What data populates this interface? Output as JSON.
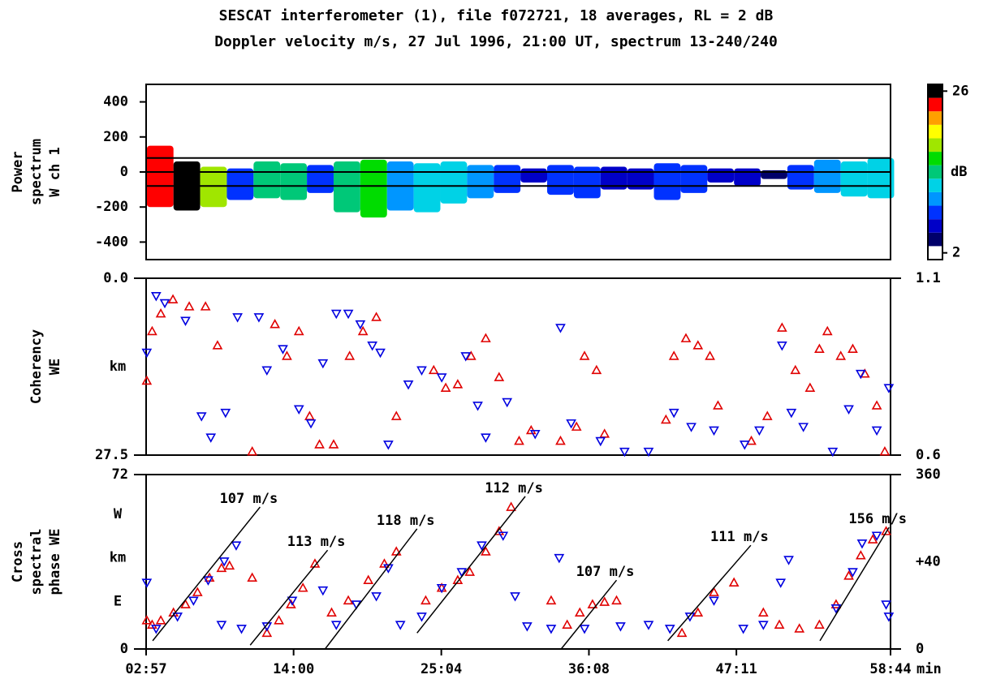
{
  "chart_data": [
    {
      "type": "heatmap",
      "title": [
        "SESCAT interferometer (1), file f072721, 18 averages, RL = 2 dB",
        "Doppler velocity m/s, 27 Jul 1996, 21:00 UT, spectrum 13-240/240"
      ],
      "ylabel": [
        "Power",
        "spectrum",
        "W ch 1"
      ],
      "xlim": [
        2.95,
        58.73
      ],
      "ylim": [
        -500,
        500
      ],
      "yticks": [
        -400,
        -200,
        0,
        200,
        400
      ],
      "hlines": [
        80,
        0,
        -80
      ],
      "echo": {
        "time": [
          4,
          6,
          8,
          10,
          12,
          14,
          16,
          18,
          20,
          22,
          24,
          26,
          28,
          30,
          32,
          34,
          36,
          38,
          40,
          42,
          44,
          46,
          48,
          50,
          52,
          54,
          56,
          58
        ],
        "vmin": [
          -200,
          -220,
          -200,
          -160,
          -150,
          -160,
          -120,
          -230,
          -260,
          -220,
          -230,
          -180,
          -150,
          -120,
          -60,
          -130,
          -150,
          -100,
          -100,
          -160,
          -120,
          -60,
          -80,
          -40,
          -100,
          -120,
          -140,
          -150
        ],
        "vmax": [
          150,
          60,
          30,
          20,
          60,
          50,
          40,
          60,
          70,
          60,
          50,
          60,
          40,
          40,
          20,
          40,
          30,
          30,
          20,
          50,
          40,
          20,
          20,
          10,
          40,
          70,
          60,
          80
        ],
        "db": [
          24,
          26,
          18,
          8,
          14,
          14,
          8,
          14,
          16,
          10,
          12,
          12,
          10,
          8,
          6,
          8,
          8,
          6,
          6,
          8,
          8,
          6,
          5,
          4,
          8,
          10,
          12,
          12
        ]
      },
      "colorbar": {
        "clim": [
          2,
          26
        ],
        "ticks": [
          2,
          26
        ],
        "label": "dB",
        "colors": [
          "#ffffff",
          "#00006a",
          "#0000c8",
          "#0032ff",
          "#0096ff",
          "#00d2e6",
          "#00c878",
          "#00dc00",
          "#a0e600",
          "#ffff00",
          "#ffa000",
          "#ff0000",
          "#000000"
        ]
      }
    },
    {
      "type": "scatter",
      "ylabel": [
        "Coherency",
        "WE"
      ],
      "xlim": [
        2.95,
        58.73
      ],
      "ylim": [
        27.5,
        0.0
      ],
      "yticks": [
        {
          "value": 0.0,
          "label": "0.0"
        },
        27.5
      ],
      "y2lim": [
        0.6,
        1.1
      ],
      "y2ticks": [
        0.6,
        1.1
      ],
      "left_labels": [
        "km"
      ],
      "series": [
        {
          "color": "#e00000",
          "marker": "triangle-up",
          "axis": "y2",
          "x": [
            3.0,
            3.4,
            4.05,
            4.96,
            6.18,
            7.4,
            8.3,
            10.9,
            12.6,
            13.5,
            14.4,
            15.2,
            15.94,
            17.0,
            18.2,
            19.2,
            20.2,
            21.7,
            24.5,
            25.4,
            26.3,
            27.3,
            28.4,
            29.4,
            30.9,
            31.8,
            34.0,
            35.2,
            35.8,
            36.7,
            37.3,
            41.9,
            42.5,
            43.4,
            44.3,
            45.2,
            45.8,
            48.3,
            49.5,
            50.6,
            51.6,
            52.7,
            53.4,
            54.0,
            55.0,
            55.9,
            56.8,
            57.7,
            58.3
          ],
          "values": [
            0.81,
            0.95,
            1.0,
            1.04,
            1.02,
            1.02,
            0.91,
            0.61,
            0.97,
            0.88,
            0.95,
            0.71,
            0.63,
            0.63,
            0.88,
            0.95,
            0.99,
            0.71,
            0.84,
            0.79,
            0.8,
            0.88,
            0.93,
            0.82,
            0.64,
            0.67,
            0.64,
            0.68,
            0.88,
            0.84,
            0.66,
            0.7,
            0.88,
            0.93,
            0.91,
            0.88,
            0.74,
            0.64,
            0.71,
            0.96,
            0.84,
            0.79,
            0.9,
            0.95,
            0.88,
            0.9,
            0.83,
            0.74,
            0.61
          ]
        },
        {
          "color": "#0000e0",
          "marker": "triangle-down",
          "axis": "y2",
          "x": [
            3.0,
            3.7,
            4.35,
            5.9,
            7.1,
            7.8,
            8.9,
            9.8,
            11.4,
            12.0,
            13.2,
            14.4,
            15.3,
            16.2,
            17.2,
            18.1,
            19.0,
            19.9,
            20.5,
            21.1,
            22.6,
            23.6,
            25.1,
            26.9,
            27.8,
            28.4,
            30.0,
            32.1,
            34.0,
            34.8,
            37.0,
            38.8,
            40.6,
            42.5,
            43.8,
            45.5,
            47.8,
            48.9,
            50.6,
            51.3,
            52.2,
            54.4,
            55.6,
            56.5,
            57.7,
            58.6
          ],
          "values": [
            0.89,
            1.05,
            1.03,
            0.98,
            0.71,
            0.65,
            0.72,
            0.99,
            0.99,
            0.84,
            0.9,
            0.73,
            0.69,
            0.86,
            1.0,
            1.0,
            0.97,
            0.91,
            0.89,
            0.63,
            0.8,
            0.84,
            0.82,
            0.88,
            0.74,
            0.65,
            0.75,
            0.66,
            0.96,
            0.69,
            0.64,
            0.61,
            0.61,
            0.72,
            0.68,
            0.67,
            0.63,
            0.67,
            0.91,
            0.72,
            0.68,
            0.61,
            0.73,
            0.83,
            0.67,
            0.79
          ]
        }
      ]
    },
    {
      "type": "scatter",
      "ylabel": [
        "Cross",
        "spectral",
        "phase WE"
      ],
      "xlim": [
        2.95,
        58.73
      ],
      "xticks": [
        {
          "value": 2.95,
          "label": "02:57"
        },
        {
          "value": 14.0,
          "label": "14:00"
        },
        {
          "value": 25.07,
          "label": "25:04"
        },
        {
          "value": 36.13,
          "label": "36:08"
        },
        {
          "value": 47.18,
          "label": "47:11"
        },
        {
          "value": 58.73,
          "label": "58:44"
        }
      ],
      "xlabel": "min",
      "ylim": [
        0,
        72
      ],
      "yticks": [
        0,
        72
      ],
      "y2lim": [
        0,
        360
      ],
      "y2ticks": [
        0,
        360
      ],
      "left_labels": [
        "W",
        "km",
        "E"
      ],
      "right_labels": [
        "+40"
      ],
      "series": [
        {
          "color": "#e00000",
          "marker": "triangle-up",
          "axis": "y2",
          "x": [
            3.0,
            3.4,
            4.05,
            5.0,
            5.9,
            6.8,
            7.7,
            8.6,
            9.2,
            10.9,
            12.0,
            12.9,
            13.8,
            14.7,
            15.6,
            16.85,
            18.1,
            19.6,
            20.8,
            21.7,
            23.9,
            25.1,
            26.3,
            27.2,
            28.4,
            29.4,
            30.3,
            33.3,
            34.5,
            35.45,
            36.4,
            37.3,
            38.2,
            43.1,
            44.3,
            45.5,
            47.0,
            49.2,
            50.4,
            51.9,
            53.4,
            54.65,
            55.6,
            56.5,
            57.4,
            58.4
          ],
          "values": [
            59,
            50,
            59,
            75,
            92,
            117,
            147,
            167,
            172,
            147,
            33,
            59,
            92,
            126,
            176,
            75,
            100,
            142,
            176,
            201,
            100,
            126,
            142,
            159,
            201,
            243,
            293,
            100,
            50,
            75,
            92,
            97,
            100,
            33,
            75,
            117,
            137,
            75,
            50,
            42,
            50,
            92,
            151,
            193,
            226,
            243
          ]
        },
        {
          "color": "#0000e0",
          "marker": "triangle-down",
          "axis": "y2",
          "x": [
            3.0,
            3.7,
            5.3,
            6.5,
            7.6,
            8.8,
            9.7,
            8.6,
            10.1,
            12.0,
            13.9,
            16.2,
            17.2,
            18.7,
            20.2,
            21.1,
            22.0,
            23.6,
            25.1,
            26.6,
            28.1,
            29.7,
            30.6,
            31.5,
            33.3,
            33.9,
            35.8,
            38.5,
            40.6,
            42.2,
            43.7,
            45.5,
            47.7,
            50.5,
            51.1,
            49.2,
            54.65,
            55.9,
            56.6,
            57.7,
            58.4,
            58.6
          ],
          "values": [
            137,
            42,
            67,
            100,
            142,
            181,
            214,
            50,
            42,
            47,
            100,
            121,
            50,
            92,
            109,
            167,
            50,
            67,
            126,
            159,
            214,
            234,
            109,
            47,
            42,
            188,
            42,
            47,
            50,
            42,
            67,
            100,
            42,
            137,
            184,
            50,
            84,
            159,
            218,
            234,
            92,
            67
          ]
        }
      ],
      "annotations": [
        {
          "text": "107 m/s",
          "x": [
            3.44,
            11.49
          ],
          "y": [
            17,
            293
          ]
        },
        {
          "text": "113 m/s",
          "x": [
            10.75,
            16.55
          ],
          "y": [
            8,
            204
          ]
        },
        {
          "text": "118 m/s",
          "x": [
            16.36,
            23.25
          ],
          "y": [
            0,
            248
          ]
        },
        {
          "text": "112 m/s",
          "x": [
            23.25,
            31.36
          ],
          "y": [
            33,
            315
          ]
        },
        {
          "text": "107 m/s",
          "x": [
            34.05,
            38.2
          ],
          "y": [
            0,
            142
          ]
        },
        {
          "text": "111 m/s",
          "x": [
            42.04,
            48.26
          ],
          "y": [
            17,
            214
          ]
        },
        {
          "text": "156 m/s",
          "x": [
            53.44,
            58.62
          ],
          "y": [
            17,
            251
          ]
        }
      ]
    }
  ]
}
